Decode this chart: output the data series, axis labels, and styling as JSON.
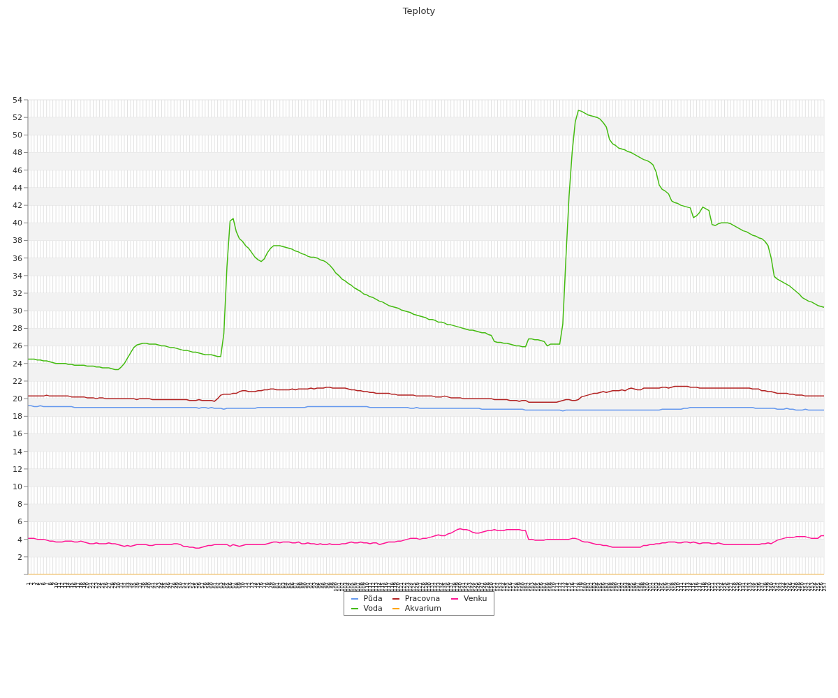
{
  "chart_data": {
    "type": "line",
    "title": "Teploty",
    "categories": [
      "1",
      "2",
      "3",
      "4",
      "5",
      "6",
      "7",
      "8",
      "9",
      "10",
      "11",
      "12",
      "13",
      "14",
      "15",
      "16",
      "17",
      "18",
      "19",
      "20",
      "21",
      "22",
      "23",
      "24",
      "25",
      "26",
      "27",
      "28",
      "29",
      "30",
      "31",
      "32",
      "33",
      "34",
      "35",
      "36",
      "37",
      "38",
      "39",
      "40",
      "41",
      "42",
      "43",
      "44",
      "45",
      "46",
      "47",
      "48",
      "49",
      "50",
      "51",
      "52",
      "53",
      "54",
      "55",
      "56",
      "57",
      "58",
      "59",
      "60",
      "61",
      "62",
      "63",
      "64",
      "65",
      "66",
      "67",
      "68",
      "69",
      "70",
      "71",
      "72",
      "73",
      "74",
      "75",
      "76",
      "77",
      "78",
      "79",
      "80",
      "81",
      "82",
      "83",
      "84",
      "85",
      "86",
      "87",
      "88",
      "89",
      "90",
      "91",
      "92",
      "93",
      "94",
      "95",
      "96",
      "97",
      "98",
      "99",
      "100",
      "101",
      "102",
      "103",
      "104",
      "105",
      "106",
      "107",
      "108",
      "109",
      "110",
      "111",
      "112",
      "113",
      "114",
      "115",
      "116",
      "117",
      "118",
      "119",
      "120",
      "121",
      "122",
      "123",
      "124",
      "125",
      "126",
      "127",
      "128",
      "129",
      "130",
      "131",
      "132",
      "133",
      "134",
      "135",
      "136",
      "137",
      "138",
      "139",
      "140",
      "141",
      "142",
      "143",
      "144",
      "145",
      "146",
      "147",
      "148",
      "149",
      "150",
      "151",
      "152",
      "153",
      "154",
      "155",
      "156",
      "157",
      "158",
      "159",
      "160",
      "161",
      "162",
      "163",
      "164",
      "165",
      "166",
      "167",
      "168",
      "169",
      "170",
      "171",
      "172",
      "173",
      "174",
      "175",
      "176",
      "177",
      "178",
      "179",
      "180",
      "181",
      "182",
      "183",
      "184",
      "185",
      "186",
      "187",
      "188",
      "189",
      "190",
      "191",
      "192",
      "193",
      "194",
      "195",
      "196",
      "197",
      "198",
      "199",
      "200",
      "201",
      "202",
      "203",
      "204",
      "205",
      "206",
      "207",
      "208",
      "209",
      "210",
      "211",
      "212",
      "213",
      "214",
      "215",
      "216",
      "217",
      "218",
      "219",
      "220",
      "221",
      "222",
      "223",
      "224",
      "225",
      "226",
      "227",
      "228",
      "229",
      "230",
      "231",
      "232",
      "233",
      "234",
      "235",
      "236",
      "237",
      "238",
      "239",
      "240",
      "241",
      "242",
      "243",
      "244",
      "245",
      "246",
      "247",
      "248",
      "249",
      "250",
      "251",
      "252",
      "253",
      "254",
      "255",
      "256",
      "257"
    ],
    "series": [
      {
        "name": "Půda",
        "color": "#6699ee",
        "values": [
          19.2,
          19.2,
          19.1,
          19.1,
          19.2,
          19.1,
          19.1,
          19.1,
          19.1,
          19.1,
          19.1,
          19.1,
          19.1,
          19.1,
          19.1,
          19.0,
          19.0,
          19.0,
          19.0,
          19.0,
          19.0,
          19.0,
          19.0,
          19.0,
          19.0,
          19.0,
          19.0,
          19.0,
          19.0,
          19.0,
          19.0,
          19.0,
          19.0,
          19.0,
          19.0,
          19.0,
          19.0,
          19.0,
          19.0,
          19.0,
          19.0,
          19.0,
          19.0,
          19.0,
          19.0,
          19.0,
          19.0,
          19.0,
          19.0,
          19.0,
          19.0,
          19.0,
          19.0,
          19.0,
          19.0,
          18.9,
          19.0,
          19.0,
          18.9,
          19.0,
          18.9,
          18.9,
          18.9,
          18.8,
          18.9,
          18.9,
          18.9,
          18.9,
          18.9,
          18.9,
          18.9,
          18.9,
          18.9,
          18.9,
          19.0,
          19.0,
          19.0,
          19.0,
          19.0,
          19.0,
          19.0,
          19.0,
          19.0,
          19.0,
          19.0,
          19.0,
          19.0,
          19.0,
          19.0,
          19.0,
          19.1,
          19.1,
          19.1,
          19.1,
          19.1,
          19.1,
          19.1,
          19.1,
          19.1,
          19.1,
          19.1,
          19.1,
          19.1,
          19.1,
          19.1,
          19.1,
          19.1,
          19.1,
          19.1,
          19.1,
          19.0,
          19.0,
          19.0,
          19.0,
          19.0,
          19.0,
          19.0,
          19.0,
          19.0,
          19.0,
          19.0,
          19.0,
          19.0,
          18.9,
          18.9,
          19.0,
          18.9,
          18.9,
          18.9,
          18.9,
          18.9,
          18.9,
          18.9,
          18.9,
          18.9,
          18.9,
          18.9,
          18.9,
          18.9,
          18.9,
          18.9,
          18.9,
          18.9,
          18.9,
          18.9,
          18.9,
          18.8,
          18.8,
          18.8,
          18.8,
          18.8,
          18.8,
          18.8,
          18.8,
          18.8,
          18.8,
          18.8,
          18.8,
          18.8,
          18.8,
          18.7,
          18.7,
          18.7,
          18.7,
          18.7,
          18.7,
          18.7,
          18.7,
          18.7,
          18.7,
          18.7,
          18.7,
          18.6,
          18.7,
          18.7,
          18.7,
          18.7,
          18.7,
          18.7,
          18.7,
          18.7,
          18.7,
          18.7,
          18.7,
          18.7,
          18.7,
          18.7,
          18.7,
          18.7,
          18.7,
          18.7,
          18.7,
          18.7,
          18.7,
          18.7,
          18.7,
          18.7,
          18.7,
          18.7,
          18.7,
          18.7,
          18.7,
          18.7,
          18.7,
          18.8,
          18.8,
          18.8,
          18.8,
          18.8,
          18.8,
          18.8,
          18.9,
          18.9,
          19.0,
          19.0,
          19.0,
          19.0,
          19.0,
          19.0,
          19.0,
          19.0,
          19.0,
          19.0,
          19.0,
          19.0,
          19.0,
          19.0,
          19.0,
          19.0,
          19.0,
          19.0,
          19.0,
          19.0,
          19.0,
          18.9,
          18.9,
          18.9,
          18.9,
          18.9,
          18.9,
          18.9,
          18.8,
          18.8,
          18.8,
          18.9,
          18.8,
          18.8,
          18.7,
          18.7,
          18.7,
          18.8,
          18.7,
          18.7,
          18.7,
          18.7,
          18.7,
          18.7
        ]
      },
      {
        "name": "Voda",
        "color": "#44bb11",
        "values": [
          24.5,
          24.5,
          24.5,
          24.4,
          24.4,
          24.3,
          24.3,
          24.2,
          24.1,
          24.0,
          24.0,
          24.0,
          24.0,
          23.9,
          23.9,
          23.8,
          23.8,
          23.8,
          23.8,
          23.7,
          23.7,
          23.7,
          23.6,
          23.6,
          23.5,
          23.5,
          23.5,
          23.4,
          23.3,
          23.3,
          23.6,
          24.0,
          24.6,
          25.2,
          25.8,
          26.1,
          26.2,
          26.3,
          26.3,
          26.2,
          26.2,
          26.2,
          26.1,
          26.0,
          26.0,
          25.9,
          25.8,
          25.8,
          25.7,
          25.6,
          25.5,
          25.5,
          25.4,
          25.3,
          25.3,
          25.2,
          25.1,
          25.0,
          25.0,
          25.0,
          24.9,
          24.8,
          24.8,
          27.4,
          35.0,
          40.2,
          40.5,
          39.0,
          38.2,
          37.9,
          37.4,
          37.1,
          36.6,
          36.1,
          35.8,
          35.6,
          35.9,
          36.6,
          37.1,
          37.4,
          37.4,
          37.4,
          37.3,
          37.2,
          37.1,
          37.0,
          36.8,
          36.7,
          36.5,
          36.4,
          36.2,
          36.1,
          36.1,
          36.0,
          35.8,
          35.7,
          35.5,
          35.2,
          34.8,
          34.3,
          34.0,
          33.6,
          33.4,
          33.1,
          32.9,
          32.6,
          32.4,
          32.2,
          31.9,
          31.8,
          31.6,
          31.5,
          31.3,
          31.1,
          31.0,
          30.8,
          30.6,
          30.5,
          30.4,
          30.3,
          30.1,
          30.0,
          29.9,
          29.8,
          29.6,
          29.5,
          29.4,
          29.3,
          29.2,
          29.0,
          29.0,
          28.9,
          28.7,
          28.7,
          28.6,
          28.4,
          28.4,
          28.3,
          28.2,
          28.1,
          28.0,
          27.9,
          27.8,
          27.8,
          27.7,
          27.6,
          27.5,
          27.5,
          27.3,
          27.2,
          26.5,
          26.4,
          26.4,
          26.3,
          26.3,
          26.2,
          26.1,
          26.0,
          26.0,
          25.9,
          25.9,
          26.8,
          26.8,
          26.7,
          26.7,
          26.6,
          26.5,
          26.0,
          26.2,
          26.2,
          26.2,
          26.2,
          28.5,
          36.0,
          43.0,
          48.0,
          51.5,
          52.8,
          52.7,
          52.5,
          52.3,
          52.2,
          52.1,
          52.0,
          51.8,
          51.4,
          50.9,
          49.5,
          49.0,
          48.8,
          48.5,
          48.4,
          48.3,
          48.1,
          48.0,
          47.8,
          47.6,
          47.4,
          47.2,
          47.1,
          46.9,
          46.6,
          45.8,
          44.3,
          43.8,
          43.6,
          43.3,
          42.5,
          42.3,
          42.2,
          42.0,
          41.9,
          41.8,
          41.7,
          40.6,
          40.8,
          41.2,
          41.8,
          41.6,
          41.4,
          39.8,
          39.7,
          39.9,
          40.0,
          40.0,
          40.0,
          39.9,
          39.7,
          39.5,
          39.3,
          39.1,
          39.0,
          38.8,
          38.6,
          38.5,
          38.3,
          38.2,
          37.9,
          37.4,
          36.0,
          33.9,
          33.6,
          33.4,
          33.2,
          33.0,
          32.8,
          32.5,
          32.2,
          31.9,
          31.5,
          31.3,
          31.1,
          31.0,
          30.8,
          30.6,
          30.5,
          30.4
        ]
      },
      {
        "name": "Pracovna",
        "color": "#b22222",
        "values": [
          20.3,
          20.3,
          20.3,
          20.3,
          20.3,
          20.3,
          20.4,
          20.3,
          20.3,
          20.3,
          20.3,
          20.3,
          20.3,
          20.3,
          20.2,
          20.2,
          20.2,
          20.2,
          20.2,
          20.1,
          20.1,
          20.1,
          20.0,
          20.1,
          20.1,
          20.0,
          20.0,
          20.0,
          20.0,
          20.0,
          20.0,
          20.0,
          20.0,
          20.0,
          20.0,
          19.9,
          20.0,
          20.0,
          20.0,
          20.0,
          19.9,
          19.9,
          19.9,
          19.9,
          19.9,
          19.9,
          19.9,
          19.9,
          19.9,
          19.9,
          19.9,
          19.9,
          19.8,
          19.8,
          19.8,
          19.9,
          19.8,
          19.8,
          19.8,
          19.8,
          19.7,
          20.0,
          20.4,
          20.5,
          20.5,
          20.5,
          20.6,
          20.6,
          20.8,
          20.9,
          20.9,
          20.8,
          20.8,
          20.8,
          20.9,
          20.9,
          21.0,
          21.0,
          21.1,
          21.1,
          21.0,
          21.0,
          21.0,
          21.0,
          21.0,
          21.1,
          21.0,
          21.1,
          21.1,
          21.1,
          21.1,
          21.2,
          21.1,
          21.2,
          21.2,
          21.2,
          21.3,
          21.3,
          21.2,
          21.2,
          21.2,
          21.2,
          21.2,
          21.1,
          21.0,
          21.0,
          20.9,
          20.9,
          20.8,
          20.8,
          20.7,
          20.7,
          20.6,
          20.6,
          20.6,
          20.6,
          20.6,
          20.5,
          20.5,
          20.4,
          20.4,
          20.4,
          20.4,
          20.4,
          20.4,
          20.3,
          20.3,
          20.3,
          20.3,
          20.3,
          20.3,
          20.2,
          20.2,
          20.2,
          20.3,
          20.2,
          20.1,
          20.1,
          20.1,
          20.1,
          20.0,
          20.0,
          20.0,
          20.0,
          20.0,
          20.0,
          20.0,
          20.0,
          20.0,
          20.0,
          19.9,
          19.9,
          19.9,
          19.9,
          19.9,
          19.8,
          19.8,
          19.8,
          19.7,
          19.8,
          19.8,
          19.6,
          19.6,
          19.6,
          19.6,
          19.6,
          19.6,
          19.6,
          19.6,
          19.6,
          19.6,
          19.7,
          19.8,
          19.9,
          19.9,
          19.8,
          19.8,
          19.9,
          20.2,
          20.3,
          20.4,
          20.5,
          20.6,
          20.6,
          20.7,
          20.8,
          20.7,
          20.8,
          20.9,
          20.9,
          20.9,
          21.0,
          20.9,
          21.1,
          21.2,
          21.1,
          21.0,
          21.0,
          21.2,
          21.2,
          21.2,
          21.2,
          21.2,
          21.2,
          21.3,
          21.3,
          21.2,
          21.3,
          21.4,
          21.4,
          21.4,
          21.4,
          21.4,
          21.3,
          21.3,
          21.3,
          21.2,
          21.2,
          21.2,
          21.2,
          21.2,
          21.2,
          21.2,
          21.2,
          21.2,
          21.2,
          21.2,
          21.2,
          21.2,
          21.2,
          21.2,
          21.2,
          21.2,
          21.1,
          21.1,
          21.1,
          20.9,
          20.9,
          20.8,
          20.8,
          20.7,
          20.6,
          20.6,
          20.6,
          20.6,
          20.5,
          20.5,
          20.4,
          20.4,
          20.4,
          20.3,
          20.3,
          20.3,
          20.3,
          20.3,
          20.3,
          20.3
        ]
      },
      {
        "name": "Akvarium",
        "color": "#ffa500",
        "values": [
          0,
          0,
          0,
          0,
          0,
          0,
          0,
          0,
          0,
          0,
          0,
          0,
          0,
          0,
          0,
          0,
          0,
          0,
          0,
          0,
          0,
          0,
          0,
          0,
          0,
          0,
          0,
          0,
          0,
          0,
          0,
          0,
          0,
          0,
          0,
          0,
          0,
          0,
          0,
          0,
          0,
          0,
          0,
          0,
          0,
          0,
          0,
          0,
          0,
          0,
          0,
          0,
          0,
          0,
          0,
          0,
          0,
          0,
          0,
          0,
          0,
          0,
          0,
          0,
          0,
          0,
          0,
          0,
          0,
          0,
          0,
          0,
          0,
          0,
          0,
          0,
          0,
          0,
          0,
          0,
          0,
          0,
          0,
          0,
          0,
          0,
          0,
          0,
          0,
          0,
          0,
          0,
          0,
          0,
          0,
          0,
          0,
          0,
          0,
          0,
          0,
          0,
          0,
          0,
          0,
          0,
          0,
          0,
          0,
          0,
          0,
          0,
          0,
          0,
          0,
          0,
          0,
          0,
          0,
          0,
          0,
          0,
          0,
          0,
          0,
          0,
          0,
          0,
          0,
          0,
          0,
          0,
          0,
          0,
          0,
          0,
          0,
          0,
          0,
          0,
          0,
          0,
          0,
          0,
          0,
          0,
          0,
          0,
          0,
          0,
          0,
          0,
          0,
          0,
          0,
          0,
          0,
          0,
          0,
          0,
          0,
          0,
          0,
          0,
          0,
          0,
          0,
          0,
          0,
          0,
          0,
          0,
          0,
          0,
          0,
          0,
          0,
          0,
          0,
          0,
          0,
          0,
          0,
          0,
          0,
          0,
          0,
          0,
          0,
          0,
          0,
          0,
          0,
          0,
          0,
          0,
          0,
          0,
          0,
          0,
          0,
          0,
          0,
          0,
          0,
          0,
          0,
          0,
          0,
          0,
          0,
          0,
          0,
          0,
          0,
          0,
          0,
          0,
          0,
          0,
          0,
          0,
          0,
          0,
          0,
          0,
          0,
          0,
          0,
          0,
          0,
          0,
          0,
          0,
          0,
          0,
          0,
          0,
          0,
          0,
          0,
          0,
          0,
          0,
          0,
          0,
          0,
          0,
          0,
          0,
          0,
          0,
          0,
          0,
          0,
          0,
          0
        ]
      },
      {
        "name": "Venku",
        "color": "#ff1493",
        "values": [
          4.1,
          4.1,
          4.1,
          4.0,
          4.0,
          4.0,
          3.9,
          3.8,
          3.8,
          3.7,
          3.7,
          3.7,
          3.8,
          3.8,
          3.8,
          3.7,
          3.7,
          3.8,
          3.7,
          3.6,
          3.5,
          3.5,
          3.6,
          3.5,
          3.5,
          3.5,
          3.6,
          3.5,
          3.5,
          3.4,
          3.3,
          3.2,
          3.3,
          3.2,
          3.3,
          3.4,
          3.4,
          3.4,
          3.4,
          3.3,
          3.3,
          3.4,
          3.4,
          3.4,
          3.4,
          3.4,
          3.4,
          3.5,
          3.5,
          3.4,
          3.2,
          3.2,
          3.1,
          3.1,
          3.0,
          3.0,
          3.1,
          3.2,
          3.3,
          3.3,
          3.4,
          3.4,
          3.4,
          3.4,
          3.4,
          3.2,
          3.4,
          3.3,
          3.2,
          3.3,
          3.4,
          3.4,
          3.4,
          3.4,
          3.4,
          3.4,
          3.4,
          3.5,
          3.6,
          3.7,
          3.7,
          3.6,
          3.7,
          3.7,
          3.7,
          3.6,
          3.6,
          3.7,
          3.5,
          3.5,
          3.6,
          3.5,
          3.5,
          3.4,
          3.5,
          3.4,
          3.4,
          3.5,
          3.4,
          3.4,
          3.4,
          3.5,
          3.5,
          3.6,
          3.7,
          3.6,
          3.6,
          3.7,
          3.6,
          3.6,
          3.5,
          3.6,
          3.6,
          3.4,
          3.5,
          3.6,
          3.7,
          3.7,
          3.7,
          3.8,
          3.8,
          3.9,
          4.0,
          4.1,
          4.1,
          4.1,
          4.0,
          4.1,
          4.1,
          4.2,
          4.3,
          4.4,
          4.5,
          4.4,
          4.4,
          4.6,
          4.7,
          4.9,
          5.1,
          5.2,
          5.1,
          5.1,
          5.0,
          4.8,
          4.7,
          4.7,
          4.8,
          4.9,
          5.0,
          5.0,
          5.1,
          5.0,
          5.0,
          5.0,
          5.1,
          5.1,
          5.1,
          5.1,
          5.1,
          5.0,
          5.0,
          4.0,
          4.0,
          3.9,
          3.9,
          3.9,
          3.9,
          4.0,
          4.0,
          4.0,
          4.0,
          4.0,
          4.0,
          4.0,
          4.0,
          4.1,
          4.1,
          4.0,
          3.8,
          3.7,
          3.7,
          3.6,
          3.5,
          3.4,
          3.4,
          3.3,
          3.3,
          3.2,
          3.1,
          3.1,
          3.1,
          3.1,
          3.1,
          3.1,
          3.1,
          3.1,
          3.1,
          3.1,
          3.3,
          3.3,
          3.4,
          3.4,
          3.5,
          3.5,
          3.6,
          3.6,
          3.7,
          3.7,
          3.7,
          3.6,
          3.6,
          3.7,
          3.7,
          3.6,
          3.7,
          3.6,
          3.5,
          3.6,
          3.6,
          3.6,
          3.5,
          3.5,
          3.6,
          3.5,
          3.4,
          3.4,
          3.4,
          3.4,
          3.4,
          3.4,
          3.4,
          3.4,
          3.4,
          3.4,
          3.4,
          3.4,
          3.5,
          3.5,
          3.6,
          3.5,
          3.7,
          3.9,
          4.0,
          4.1,
          4.2,
          4.2,
          4.2,
          4.3,
          4.3,
          4.3,
          4.3,
          4.2,
          4.1,
          4.1,
          4.1,
          4.4,
          4.4
        ]
      }
    ],
    "ylim": [
      0,
      54
    ],
    "yticks": [
      {
        "value": 0,
        "label": null
      },
      2,
      4,
      6,
      8,
      10,
      12,
      14,
      16,
      18,
      20,
      22,
      24,
      26,
      28,
      30,
      32,
      34,
      36,
      38,
      40,
      42,
      44,
      46,
      48,
      50,
      52,
      54
    ],
    "grid": true,
    "legend": "bottom",
    "marker": "none",
    "line_style": "solid"
  }
}
